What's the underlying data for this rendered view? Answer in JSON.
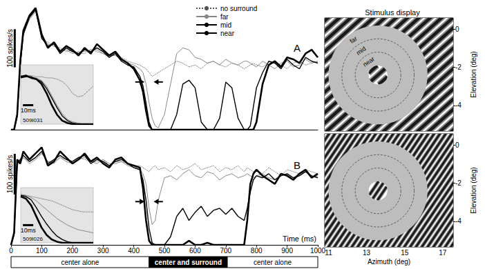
{
  "chart_data": [
    {
      "type": "line",
      "panel": "A",
      "x": [
        0,
        10,
        20,
        30,
        40,
        60,
        80,
        100,
        120,
        140,
        160,
        180,
        200,
        220,
        240,
        260,
        280,
        300,
        320,
        340,
        360,
        380,
        400,
        420,
        430,
        440,
        450,
        460,
        470,
        480,
        500,
        520,
        540,
        560,
        580,
        600,
        620,
        640,
        660,
        680,
        700,
        720,
        740,
        760,
        770,
        780,
        790,
        800,
        820,
        840,
        860,
        880,
        900,
        920,
        940,
        960,
        980,
        1000
      ],
      "xlim": [
        0,
        1000
      ],
      "ylim": [
        0,
        330
      ],
      "tick_labels": false,
      "grid": false,
      "legend": "top",
      "series": [
        {
          "name": "no surround",
          "color": "#555555",
          "line_style": "dotted",
          "values": [
            0,
            0,
            30,
            170,
            250,
            300,
            315,
            240,
            230,
            220,
            215,
            205,
            210,
            200,
            200,
            210,
            205,
            200,
            190,
            200,
            190,
            180,
            175,
            170,
            165,
            160,
            150,
            140,
            145,
            150,
            160,
            170,
            180,
            175,
            165,
            170,
            160,
            175,
            180,
            170,
            165,
            175,
            170,
            160,
            165,
            170,
            175,
            170,
            165,
            175,
            180,
            170,
            160,
            175,
            180,
            170,
            175,
            180
          ]
        },
        {
          "name": "far",
          "color": "#888888",
          "line_style": "solid",
          "values": [
            0,
            0,
            30,
            165,
            255,
            290,
            310,
            245,
            225,
            220,
            210,
            210,
            200,
            205,
            205,
            210,
            210,
            200,
            195,
            195,
            185,
            175,
            170,
            160,
            150,
            120,
            70,
            30,
            10,
            5,
            40,
            120,
            200,
            215,
            210,
            190,
            185,
            175,
            180,
            170,
            185,
            175,
            170,
            180,
            180,
            175,
            170,
            165,
            180,
            170,
            160,
            175,
            180,
            165,
            170,
            185,
            175,
            180
          ]
        },
        {
          "name": "mid",
          "color": "#000000",
          "line_style": "solid",
          "values": [
            0,
            0,
            35,
            170,
            250,
            295,
            315,
            240,
            220,
            225,
            200,
            215,
            205,
            200,
            210,
            205,
            215,
            205,
            190,
            200,
            180,
            170,
            165,
            140,
            115,
            70,
            20,
            0,
            0,
            0,
            0,
            0,
            40,
            120,
            130,
            110,
            20,
            0,
            0,
            30,
            125,
            110,
            30,
            0,
            0,
            10,
            60,
            110,
            150,
            180,
            175,
            160,
            185,
            170,
            160,
            190,
            180,
            175
          ]
        },
        {
          "name": "near",
          "color": "#000000",
          "line_style": "solid",
          "values": [
            0,
            0,
            40,
            180,
            260,
            300,
            320,
            250,
            215,
            230,
            205,
            220,
            210,
            195,
            215,
            200,
            225,
            210,
            195,
            205,
            185,
            175,
            160,
            130,
            100,
            50,
            10,
            0,
            0,
            0,
            0,
            0,
            0,
            0,
            0,
            0,
            0,
            0,
            0,
            0,
            0,
            0,
            0,
            0,
            0,
            0,
            0,
            20,
            120,
            170,
            180,
            165,
            190,
            185,
            175,
            200,
            210,
            190
          ]
        }
      ],
      "scale_bar": {
        "value": 100,
        "label": "100 spikes/s"
      },
      "arrows": [
        435,
        465
      ],
      "inset": {
        "id_label": "509I031",
        "x": [
          420,
          425,
          430,
          435,
          440,
          445,
          450,
          455,
          460,
          465,
          470,
          475,
          480,
          485,
          490
        ],
        "xlim": [
          420,
          490
        ],
        "ylim": [
          0,
          250
        ],
        "tick_labels": false,
        "scale_bar": {
          "value": 10,
          "label": "10ms"
        },
        "series": [
          {
            "name": "no surround",
            "color": "#555555",
            "line_style": "dotted",
            "values": [
              200,
              205,
              205,
              200,
              200,
              195,
              195,
              190,
              180,
              160,
              130,
              115,
              120,
              140,
              160
            ]
          },
          {
            "name": "far",
            "color": "#888888",
            "line_style": "solid",
            "values": [
              205,
              200,
              195,
              195,
              185,
              160,
              120,
              80,
              45,
              20,
              10,
              5,
              0,
              0,
              0
            ]
          },
          {
            "name": "mid",
            "color": "#000000",
            "line_style": "solid",
            "values": [
              195,
              200,
              200,
              190,
              180,
              150,
              110,
              70,
              35,
              15,
              5,
              0,
              0,
              0,
              0
            ]
          },
          {
            "name": "near",
            "color": "#000000",
            "line_style": "solid",
            "values": [
              200,
              205,
              195,
              190,
              170,
              130,
              80,
              40,
              15,
              5,
              0,
              0,
              0,
              0,
              0
            ]
          }
        ]
      }
    },
    {
      "type": "line",
      "panel": "B",
      "x": [
        0,
        10,
        20,
        30,
        40,
        60,
        80,
        100,
        120,
        140,
        160,
        180,
        200,
        220,
        240,
        260,
        280,
        300,
        320,
        340,
        360,
        380,
        400,
        420,
        430,
        440,
        450,
        460,
        470,
        480,
        500,
        520,
        540,
        560,
        580,
        600,
        620,
        640,
        660,
        680,
        700,
        720,
        740,
        760,
        770,
        780,
        790,
        800,
        820,
        840,
        860,
        880,
        900,
        920,
        940,
        960,
        980,
        1000
      ],
      "xlim": [
        0,
        1000
      ],
      "ylim": [
        0,
        280
      ],
      "xticks": [
        0,
        100,
        200,
        300,
        400,
        500,
        600,
        700,
        800,
        900,
        1000
      ],
      "xlabel": "Time (ms)",
      "tick_labels": "x",
      "grid": false,
      "series": [
        {
          "name": "no surround",
          "color": "#555555",
          "line_style": "dotted",
          "values": [
            0,
            25,
            200,
            205,
            215,
            205,
            215,
            225,
            205,
            205,
            215,
            210,
            200,
            215,
            210,
            205,
            205,
            210,
            195,
            205,
            205,
            200,
            195,
            195,
            190,
            185,
            180,
            190,
            195,
            185,
            190,
            180,
            195,
            185,
            190,
            200,
            185,
            190,
            195,
            180,
            190,
            185,
            195,
            180,
            190,
            185,
            180,
            185,
            175,
            190,
            180,
            170,
            185,
            180,
            175,
            185,
            180,
            175
          ]
        },
        {
          "name": "far",
          "color": "#888888",
          "line_style": "solid",
          "values": [
            0,
            25,
            195,
            205,
            215,
            200,
            210,
            225,
            205,
            200,
            215,
            205,
            200,
            210,
            215,
            205,
            200,
            210,
            200,
            200,
            205,
            195,
            190,
            185,
            175,
            150,
            90,
            50,
            60,
            110,
            165,
            170,
            160,
            175,
            185,
            170,
            165,
            180,
            175,
            160,
            170,
            175,
            165,
            170,
            175,
            170,
            165,
            170,
            175,
            165,
            160,
            175,
            170,
            165,
            175,
            180,
            165,
            170
          ]
        },
        {
          "name": "mid",
          "color": "#000000",
          "line_style": "solid",
          "values": [
            0,
            25,
            200,
            210,
            220,
            205,
            215,
            230,
            200,
            210,
            220,
            210,
            205,
            215,
            220,
            200,
            210,
            205,
            195,
            205,
            210,
            200,
            190,
            185,
            160,
            110,
            40,
            5,
            0,
            0,
            0,
            20,
            70,
            90,
            60,
            80,
            95,
            70,
            85,
            90,
            75,
            90,
            70,
            60,
            90,
            130,
            160,
            170,
            165,
            175,
            160,
            170,
            175,
            165,
            170,
            180,
            170,
            165
          ]
        },
        {
          "name": "near",
          "color": "#000000",
          "line_style": "solid",
          "values": [
            0,
            30,
            210,
            200,
            230,
            210,
            225,
            240,
            195,
            205,
            230,
            215,
            200,
            210,
            225,
            205,
            215,
            200,
            190,
            210,
            215,
            200,
            195,
            190,
            140,
            60,
            10,
            0,
            0,
            0,
            0,
            0,
            0,
            0,
            10,
            0,
            0,
            5,
            0,
            0,
            0,
            0,
            0,
            0,
            60,
            150,
            175,
            185,
            170,
            160,
            150,
            175,
            170,
            160,
            175,
            185,
            165,
            175
          ]
        }
      ],
      "scale_bar": {
        "value": 100,
        "label": "100 spikes/s"
      },
      "arrows": [
        435,
        465
      ],
      "inset": {
        "id_label": "509I026",
        "x": [
          420,
          425,
          430,
          435,
          440,
          445,
          450,
          455,
          460,
          465,
          470,
          475,
          480,
          485,
          490
        ],
        "xlim": [
          420,
          490
        ],
        "ylim": [
          0,
          250
        ],
        "tick_labels": false,
        "scale_bar": {
          "value": 10,
          "label": "10ms"
        },
        "series": [
          {
            "name": "no surround",
            "color": "#555555",
            "line_style": "dotted",
            "values": [
              215,
              215,
              210,
              205,
              200,
              195,
              190,
              180,
              170,
              160,
              150,
              145,
              140,
              140,
              140
            ]
          },
          {
            "name": "far",
            "color": "#888888",
            "line_style": "solid",
            "values": [
              220,
              215,
              205,
              190,
              170,
              150,
              130,
              110,
              95,
              80,
              70,
              60,
              55,
              50,
              45
            ]
          },
          {
            "name": "mid",
            "color": "#000000",
            "line_style": "solid",
            "values": [
              215,
              210,
              195,
              160,
              120,
              85,
              55,
              30,
              15,
              5,
              0,
              0,
              0,
              0,
              0
            ]
          },
          {
            "name": "near",
            "color": "#000000",
            "line_style": "solid",
            "values": [
              210,
              200,
              170,
              120,
              70,
              35,
              15,
              5,
              0,
              0,
              0,
              0,
              0,
              0,
              0
            ]
          }
        ]
      }
    },
    {
      "type": "stimulus",
      "title": "Stimulus display",
      "xlim": [
        10.8,
        17.55
      ],
      "ylim": [
        -5.35,
        0.6
      ],
      "yticks": [
        0,
        -2,
        -4
      ],
      "ylabel": "Elevation (deg)",
      "tick_labels": "y",
      "grid": false,
      "center": [
        13.6,
        -2.4
      ],
      "center_radius": 0.5,
      "ring_radii": [
        1.2,
        1.9
      ],
      "disc_radius": 2.6,
      "ring_labels": [
        "near",
        "mid",
        "far"
      ]
    },
    {
      "type": "stimulus",
      "xlim": [
        10.8,
        17.55
      ],
      "ylim": [
        -5.35,
        0.6
      ],
      "xticks": [
        11,
        13,
        15,
        17
      ],
      "yticks": [
        0,
        -2,
        -4
      ],
      "xlabel": "Azimuth (deg)",
      "ylabel": "Elevation (deg)",
      "grid": false,
      "center": [
        13.6,
        -2.4
      ],
      "center_radius": 0.5,
      "ring_radii": [
        1.2,
        1.9
      ],
      "disc_radius": 2.6
    },
    {
      "type": "epochs",
      "xlim": [
        0,
        1000
      ],
      "segments": [
        {
          "label": "center alone",
          "start": 0,
          "end": 450,
          "color": "#ffffff"
        },
        {
          "label": "center and surround",
          "start": 450,
          "end": 705,
          "color": "#000000"
        },
        {
          "label": "center alone",
          "start": 705,
          "end": 1000,
          "color": "#ffffff"
        }
      ]
    }
  ]
}
